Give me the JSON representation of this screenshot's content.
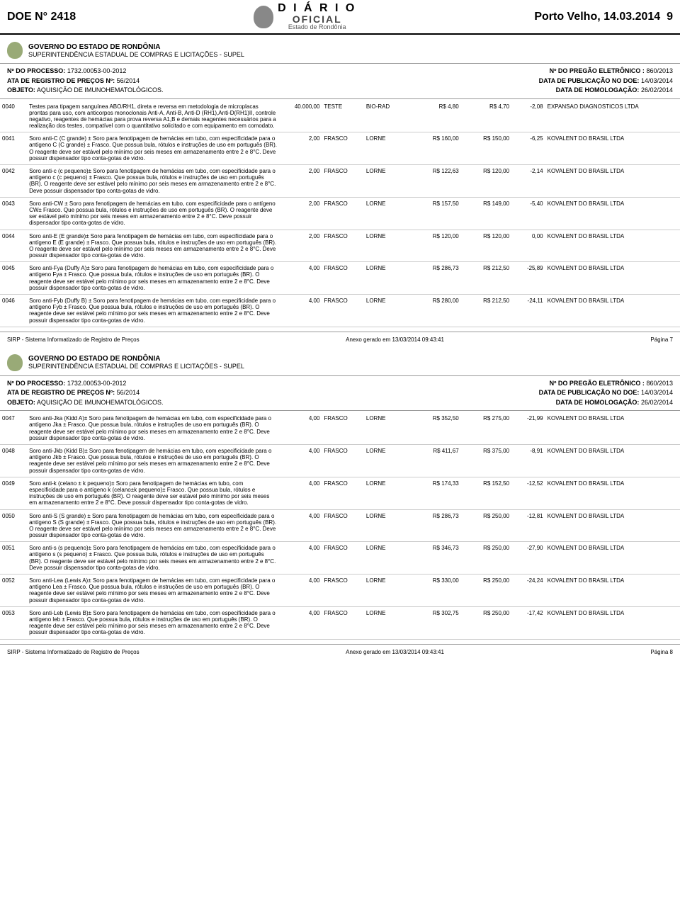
{
  "header": {
    "doe": "DOE N° 2418",
    "city_date": "Porto Velho, 14.03.2014",
    "page_num": "9",
    "diario_l1": "D I Á R I O",
    "diario_l2": "OFICIAL",
    "diario_l3": "Estado de Rondônia"
  },
  "gov": {
    "l1": "GOVERNO DO ESTADO DE RONDÔNIA",
    "l2": "SUPERINTENDÊNCIA ESTADUAL DE COMPRAS E LICITAÇÕES - SUPEL"
  },
  "meta": {
    "proc_label": "Nº DO PROCESSO:",
    "proc_val": "1732.00053-00-2012",
    "pregao_label": "Nº DO PREGÃO ELETRÔNICO :",
    "pregao_val": "860/2013",
    "ata_label": "ATA DE REGISTRO DE PREÇOS Nº:",
    "ata_val": "56/2014",
    "pub_label": "DATA DE PUBLICAÇÃO NO DOE:",
    "pub_val": "14/03/2014",
    "obj_label": "OBJETO:",
    "obj_val": "AQUISIÇÃO DE IMUNOHEMATOLÓGICOS.",
    "homolog_label": "DATA DE HOMOLOGAÇÃO:",
    "homolog_val": "26/02/2014"
  },
  "rows1": [
    {
      "code": "0040",
      "desc": "Testes para tipagem sanguínea ABO/RH1, direta e reversa em metodologia de microplacas prontas para uso, com anticorpos monoclonais Anti-A, Anti-B, Anti-D (RH1),Anti-D(RH1)II, controle negativo, reagentes de hemácias para prova reversa A1,B e demais reagentes necessários para a realização dos testes, compatível com o quantitativo solicitado e com equipamento em comodato.",
      "qty": "40.000,00",
      "unit": "TESTE",
      "brand": "BIO-RAD",
      "v1": "R$ 4,80",
      "v2": "R$ 4,70",
      "pct": "-2,08",
      "sup": "EXPANSAO DIAGNOSTICOS LTDA"
    },
    {
      "code": "0041",
      "desc": "Soro anti-C (C grande) ± Soro para fenotipagem de hemácias em tubo, com especificidade para o antígeno C (C grande) ± Frasco. Que possua bula, rótulos e instruções de uso em português (BR). O reagente deve ser estável pelo mínimo por seis meses em armazenamento entre 2 e 8°C. Deve possuir dispensador tipo conta-gotas de vidro.",
      "qty": "2,00",
      "unit": "FRASCO",
      "brand": "LORNE",
      "v1": "R$ 160,00",
      "v2": "R$ 150,00",
      "pct": "-6,25",
      "sup": "KOVALENT DO BRASIL LTDA"
    },
    {
      "code": "0042",
      "desc": "Soro anti-c (c pequeno)± Soro para fenotipagem de hemácias em tubo, com especificidade para o antígeno c (c pequeno) ± Frasco. Que possua bula, rótulos e instruções de uso em português (BR). O reagente deve ser estável pelo mínimo por seis meses em armazenamento entre 2 e 8°C. Deve possuir dispensador tipo conta-gotas de vidro.",
      "qty": "2,00",
      "unit": "FRASCO",
      "brand": "LORNE",
      "v1": "R$ 122,63",
      "v2": "R$ 120,00",
      "pct": "-2,14",
      "sup": "KOVALENT DO BRASIL LTDA"
    },
    {
      "code": "0043",
      "desc": "Soro anti-CW ± Soro para fenotipagem de hemácias em tubo, com especificidade para o antígeno CW± Frasco. Que possua bula, rótulos e instruções de uso em português (BR). O reagente deve ser estável pelo mínimo por seis meses em armazenamento entre 2 e 8°C. Deve possuir dispensador tipo conta-gotas de vidro.",
      "qty": "2,00",
      "unit": "FRASCO",
      "brand": "LORNE",
      "v1": "R$ 157,50",
      "v2": "R$ 149,00",
      "pct": "-5,40",
      "sup": "KOVALENT DO BRASIL LTDA"
    },
    {
      "code": "0044",
      "desc": "Soro anti-E (E grande)± Soro para fenotipagem de hemácias em tubo, com especificidade para o antígeno E (E grande) ± Frasco. Que possua bula, rótulos e instruções de uso em português (BR). O reagente deve ser estável pelo mínimo por seis meses em armazenamento entre 2 e 8°C. Deve possuir dispensador tipo conta-gotas de vidro.",
      "qty": "2,00",
      "unit": "FRASCO",
      "brand": "LORNE",
      "v1": "R$ 120,00",
      "v2": "R$ 120,00",
      "pct": "0,00",
      "sup": "KOVALENT DO BRASIL LTDA"
    },
    {
      "code": "0045",
      "desc": "Soro anti-Fya (Duffy A)± Soro para fenotipagem de hemácias em tubo, com especificidade para o antígeno Fya ± Frasco. Que possua bula, rótulos e instruções de uso em português (BR). O reagente deve ser estável pelo mínimo por seis meses em armazenamento entre 2 e 8°C. Deve possuir dispensador tipo conta-gotas de vidro.",
      "qty": "4,00",
      "unit": "FRASCO",
      "brand": "LORNE",
      "v1": "R$ 286,73",
      "v2": "R$ 212,50",
      "pct": "-25,89",
      "sup": "KOVALENT DO BRASIL LTDA"
    },
    {
      "code": "0046",
      "desc": "Soro anti-Fyb (Duffy B) ± Soro para fenotipagem de hemácias em tubo, com especificidade para o antígeno Fyb ± Frasco. Que possua bula, rótulos e instruções de uso em português (BR). O reagente deve ser estável pelo mínimo por seis meses em armazenamento entre 2 e 8°C. Deve possuir dispensador tipo conta-gotas de vidro.",
      "qty": "4,00",
      "unit": "FRASCO",
      "brand": "LORNE",
      "v1": "R$ 280,00",
      "v2": "R$ 212,50",
      "pct": "-24,11",
      "sup": "KOVALENT DO BRASIL LTDA"
    }
  ],
  "footer1": {
    "left": "SIRP - Sistema Informatizado de Registro de Preços",
    "center": "Anexo gerado em   13/03/2014 09:43:41",
    "right": "Página  7"
  },
  "rows2": [
    {
      "code": "0047",
      "desc": "Soro anti-Jka (Kidd A)± Soro para fenotipagem de hemácias em tubo, com especificidade para o antígeno Jka ± Frasco. Que possua bula, rótulos e instruções de uso em português (BR). O reagente deve ser estável pelo mínimo por seis meses em armazenamento entre 2 e 8°C. Deve possuir dispensador tipo conta-gotas de vidro.",
      "qty": "4,00",
      "unit": "FRASCO",
      "brand": "LORNE",
      "v1": "R$ 352,50",
      "v2": "R$ 275,00",
      "pct": "-21,99",
      "sup": "KOVALENT DO BRASIL LTDA"
    },
    {
      "code": "0048",
      "desc": "Soro anti-Jkb (Kidd B)± Soro para fenotipagem de hemácias em tubo, com especificidade para o antígeno Jkb ± Frasco. Que possua bula, rótulos e instruções de uso em português (BR). O reagente deve ser estável pelo mínimo por seis meses em armazenamento entre 2 e 8°C. Deve possuir dispensador tipo conta-gotas de vidro.",
      "qty": "4,00",
      "unit": "FRASCO",
      "brand": "LORNE",
      "v1": "R$ 411,67",
      "v2": "R$ 375,00",
      "pct": "-8,91",
      "sup": "KOVALENT DO BRASIL LTDA"
    },
    {
      "code": "0049",
      "desc": "Soro anti-k (celano ± k pequeno)± Soro para fenotipagem de hemácias em tubo, com especificidade para o antígeno k (celano±k pequeno)± Frasco. Que possua bula, rótulos e instruções de uso em português (BR). O reagente deve ser estável pelo mínimo por seis meses em armazenamento entre 2 e 8°C. Deve possuir dispensador tipo conta-gotas de vidro.",
      "qty": "4,00",
      "unit": "FRASCO",
      "brand": "LORNE",
      "v1": "R$ 174,33",
      "v2": "R$ 152,50",
      "pct": "-12,52",
      "sup": "KOVALENT DO BRASIL LTDA"
    },
    {
      "code": "0050",
      "desc": "Soro anti-S (S grande) ± Soro para fenotipagem de hemácias em tubo, com especificidade para o antígeno S (S grande)  ± Frasco. Que possua bula, rótulos e instruções de uso em português (BR). O reagente deve ser estável pelo mínimo por seis meses em armazenamento entre 2 e 8°C. Deve possuir dispensador tipo conta-gotas de vidro.",
      "qty": "4,00",
      "unit": "FRASCO",
      "brand": "LORNE",
      "v1": "R$ 286,73",
      "v2": "R$ 250,00",
      "pct": "-12,81",
      "sup": "KOVALENT DO BRASIL LTDA"
    },
    {
      "code": "0051",
      "desc": "Soro anti-s (s pequeno)± Soro para fenotipagem de hemácias em tubo, com especificidade para o antígeno s (s pequeno) ± Frasco. Que possua bula, rótulos e instruções de uso em português (BR). O reagente deve ser estável pelo mínimo por seis meses em armazenamento entre 2 e 8°C. Deve possuir dispensador tipo conta-gotas de vidro.",
      "qty": "4,00",
      "unit": "FRASCO",
      "brand": "LORNE",
      "v1": "R$ 346,73",
      "v2": "R$ 250,00",
      "pct": "-27,90",
      "sup": "KOVALENT DO BRASIL LTDA"
    },
    {
      "code": "0052",
      "desc": "Soro anti-Lea (Lewis A)± Soro para fenotipagem de hemácias em tubo, com especificidade para o antígeno Lea ± Frasco. Que possua bula, rótulos e instruções de uso em português (BR). O reagente deve ser estável pelo mínimo por seis meses em armazenamento entre 2 e 8°C. Deve possuir dispensador tipo conta-gotas de vidro.",
      "qty": "4,00",
      "unit": "FRASCO",
      "brand": "LORNE",
      "v1": "R$ 330,00",
      "v2": "R$ 250,00",
      "pct": "-24,24",
      "sup": "KOVALENT DO BRASIL LTDA"
    },
    {
      "code": "0053",
      "desc": "Soro anti-Leb (Lewis B)± Soro para fenotipagem de hemácias em tubo, com especificidade para o antígeno leb ± Frasco. Que possua bula, rótulos e instruções de uso em português (BR). O reagente deve ser estável pelo mínimo por seis meses em armazenamento entre 2 e 8°C. Deve possuir dispensador tipo conta-gotas de vidro.",
      "qty": "4,00",
      "unit": "FRASCO",
      "brand": "LORNE",
      "v1": "R$ 302,75",
      "v2": "R$ 250,00",
      "pct": "-17,42",
      "sup": "KOVALENT DO BRASIL LTDA"
    }
  ],
  "footer2": {
    "left": "SIRP - Sistema Informatizado de Registro de Preços",
    "center": "Anexo gerado em   13/03/2014 09:43:41",
    "right": "Página  8"
  }
}
